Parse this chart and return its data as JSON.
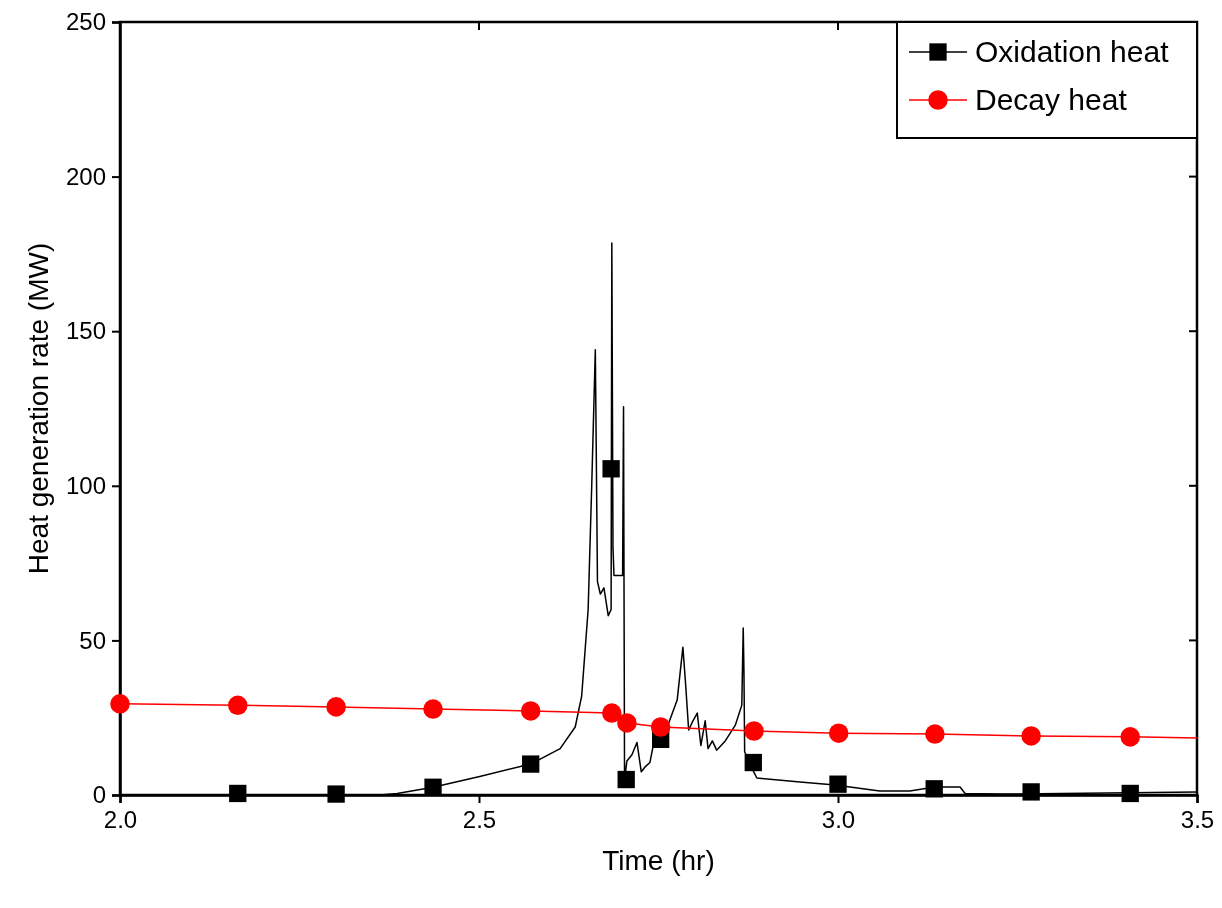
{
  "chart_data": {
    "type": "line",
    "xlabel": "Time (hr)",
    "ylabel": "Heat  generation rate (MW)",
    "xlim": [
      2.0,
      3.5
    ],
    "ylim": [
      0,
      250
    ],
    "xticks": [
      {
        "value": 2.0,
        "label": "2.0"
      },
      {
        "value": 2.5,
        "label": "2.5"
      },
      {
        "value": 3.0,
        "label": "3.0"
      },
      {
        "value": 3.5,
        "label": "3.5"
      }
    ],
    "yticks": [
      0,
      50,
      100,
      150,
      200,
      250
    ],
    "grid": false,
    "legend": "top right",
    "line_style": "solid",
    "series": [
      {
        "name": "Oxidation heat",
        "color": "#000000",
        "marker": "none",
        "x": [
          2.0,
          2.362,
          2.386,
          2.436,
          2.501,
          2.572,
          2.613,
          2.634,
          2.643,
          2.652,
          2.657,
          2.662,
          2.665,
          2.669,
          2.674,
          2.68,
          2.684,
          2.685,
          2.6866,
          2.688,
          2.7,
          2.7013,
          2.7027,
          2.706,
          2.713,
          2.72,
          2.726,
          2.731,
          2.738,
          2.745,
          2.759,
          2.776,
          2.784,
          2.788,
          2.792,
          2.798,
          2.804,
          2.809,
          2.815,
          2.819,
          2.825,
          2.831,
          2.843,
          2.857,
          2.866,
          2.868,
          2.869,
          2.87,
          2.88,
          2.887,
          2.947,
          2.996,
          3.058,
          3.1,
          3.135,
          3.17,
          3.177,
          3.226,
          3.5
        ],
        "values": [
          0,
          0,
          0.5,
          2.5,
          6,
          10,
          15,
          22,
          32,
          60,
          100,
          144,
          69,
          65,
          67,
          58,
          60,
          178.5,
          80,
          71,
          71,
          125.6,
          5,
          11,
          13,
          17,
          7.5,
          9,
          10.5,
          18.7,
          20,
          30.7,
          47.8,
          35,
          21,
          24,
          26.5,
          16,
          24,
          15,
          17.5,
          14.5,
          17.5,
          22.6,
          29,
          54,
          40,
          14,
          8.7,
          5.5,
          4.2,
          3.2,
          1.3,
          1.3,
          2.6,
          2.6,
          0.5,
          0.3,
          1
        ]
      },
      {
        "color": "#000000",
        "type": "scatter",
        "marker": "square",
        "x": [
          2.164,
          2.301,
          2.436,
          2.572,
          2.684,
          2.705,
          2.753,
          2.882,
          3.0,
          3.134,
          3.269,
          3.407
        ],
        "values": [
          0.5,
          0.3,
          2.5,
          10,
          105.5,
          5,
          18,
          10.5,
          3.5,
          2,
          1,
          0.5
        ]
      },
      {
        "name": "Decay heat",
        "color": "#ff0000",
        "marker": "none",
        "x": [
          2.0,
          2.164,
          2.301,
          2.436,
          2.572,
          2.685,
          2.706,
          2.753,
          2.883,
          3.001,
          3.135,
          3.269,
          3.407,
          3.5
        ],
        "values": [
          29.5,
          29,
          28.5,
          27.8,
          27.2,
          26.5,
          23.3,
          22,
          20.7,
          20,
          19.7,
          19.1,
          18.8,
          18.4
        ]
      },
      {
        "color": "#ff0000",
        "type": "scatter",
        "marker": "circle",
        "x": [
          2.0,
          2.164,
          2.301,
          2.436,
          2.572,
          2.685,
          2.706,
          2.753,
          2.883,
          3.001,
          3.135,
          3.269,
          3.407
        ],
        "values": [
          29.5,
          29,
          28.5,
          27.8,
          27.2,
          26.5,
          23.3,
          22,
          20.7,
          20,
          19.7,
          19.1,
          18.8
        ]
      }
    ]
  }
}
